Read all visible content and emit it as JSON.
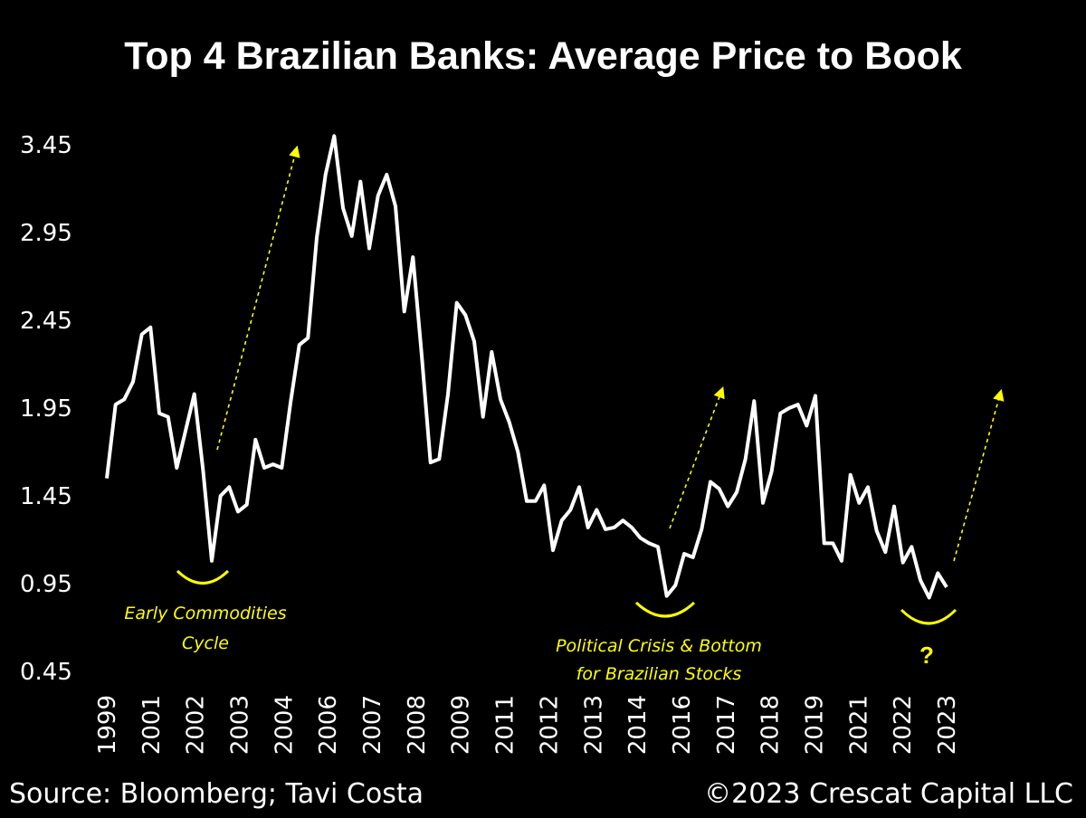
{
  "chart_data": {
    "type": "line",
    "title": "Top 4 Brazilian Banks: Average Price to Book",
    "xlabel": "",
    "ylabel": "",
    "ylim": [
      0.45,
      3.55
    ],
    "y_ticks": [
      "3.45",
      "2.95",
      "2.45",
      "1.95",
      "1.45",
      "0.95",
      "0.45"
    ],
    "x_ticks": [
      "1999",
      "2001",
      "2002",
      "2003",
      "2004",
      "2006",
      "2007",
      "2008",
      "2009",
      "2011",
      "2012",
      "2013",
      "2014",
      "2016",
      "2017",
      "2018",
      "2019",
      "2021",
      "2022",
      "2023"
    ],
    "grid": false,
    "legend": "none",
    "line_color": "#ffffff",
    "annotation_color": "#ffff00",
    "series": [
      {
        "values": [
          1.55,
          1.97,
          2.0,
          2.1,
          2.37,
          2.41,
          1.92,
          1.9,
          1.61,
          1.82,
          2.03,
          1.6,
          1.08,
          1.45,
          1.5,
          1.36,
          1.4,
          1.77,
          1.61,
          1.63,
          1.61,
          1.98,
          2.31,
          2.35,
          2.92,
          3.28,
          3.5,
          3.09,
          2.93,
          3.24,
          2.86,
          3.16,
          3.28,
          3.1,
          2.5,
          2.81,
          2.25,
          1.64,
          1.66,
          2.03,
          2.55,
          2.48,
          2.33,
          1.9,
          2.27,
          2.0,
          1.87,
          1.7,
          1.42,
          1.42,
          1.51,
          1.14,
          1.31,
          1.37,
          1.5,
          1.27,
          1.37,
          1.26,
          1.27,
          1.31,
          1.27,
          1.21,
          1.18,
          1.16,
          0.88,
          0.94,
          1.12,
          1.1,
          1.26,
          1.53,
          1.49,
          1.39,
          1.47,
          1.66,
          1.99,
          1.41,
          1.59,
          1.92,
          1.95,
          1.97,
          1.85,
          2.02,
          1.18,
          1.18,
          1.08,
          1.57,
          1.41,
          1.5,
          1.25,
          1.13,
          1.39,
          1.07,
          1.16,
          0.97,
          0.87,
          1.01,
          0.93
        ]
      }
    ],
    "annotations": [
      {
        "text_lines": [
          "Early Commodities",
          "Cycle"
        ]
      },
      {
        "text_lines": [
          "Political Crisis & Bottom",
          "for Brazilian Stocks"
        ]
      },
      {
        "text_lines": [
          "?"
        ]
      }
    ]
  },
  "source": "Source: Bloomberg; Tavi Costa",
  "copyright": "©2023 Crescat Capital LLC"
}
